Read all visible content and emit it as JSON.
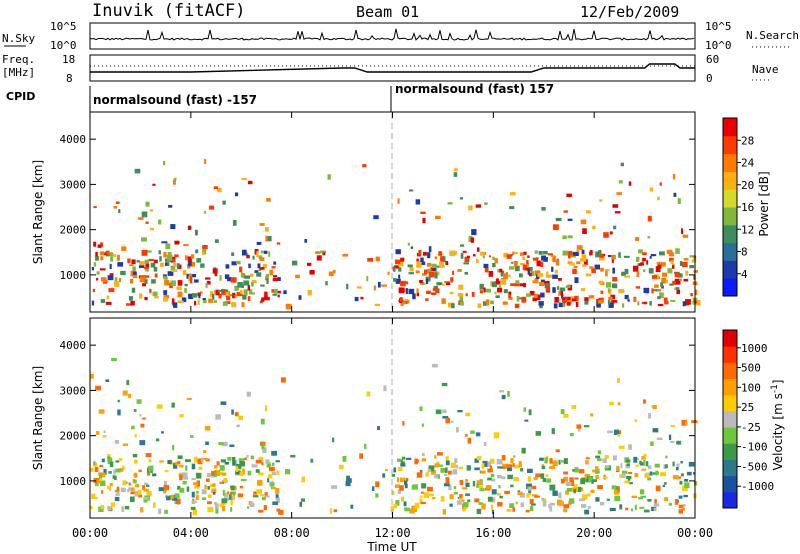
{
  "header": {
    "station": "Inuvik (fitACF)",
    "beam": "Beam 01",
    "date": "12/Feb/2009"
  },
  "top_panels": {
    "nsky_label": "N.Sky",
    "nsky_ticks": [
      "10^5",
      "10^0"
    ],
    "nsearch_label": "N.Search",
    "nsearch_ticks": [
      "10^5",
      "10^0"
    ],
    "freq_label_1": "Freq.",
    "freq_label_2": "[MHz]",
    "freq_ticks": [
      "18",
      "8"
    ],
    "nave_label": "Nave",
    "nave_ticks": [
      "60",
      "0"
    ],
    "cpid_label": "CPID",
    "cpid_1": "normalsound (fast) -157",
    "cpid_2": "normalsound (fast) 157"
  },
  "chart_data": [
    {
      "type": "heatmap",
      "title": "",
      "ylabel": "Slant Range [km]",
      "xlabel": "Time UT",
      "x_ticks": [
        "00:00",
        "04:00",
        "08:00",
        "12:00",
        "16:00",
        "20:00",
        "00:00"
      ],
      "x_range_hours": [
        0,
        24
      ],
      "y_ticks": [
        1000,
        2000,
        3000,
        4000
      ],
      "ylim": [
        180,
        4600
      ],
      "colorbar": {
        "label": "Power [dB]",
        "ticks": [
          "4",
          "8",
          "12",
          "16",
          "20",
          "24",
          "28"
        ],
        "colors": [
          "#0a1cff",
          "#1c3aa8",
          "#2a6e9a",
          "#3d8e5a",
          "#7fb83a",
          "#d8d82a",
          "#ffb010",
          "#ff7a00",
          "#ff3a00",
          "#e80000"
        ]
      }
    },
    {
      "type": "heatmap",
      "title": "",
      "ylabel": "Slant Range [km]",
      "xlabel": "Time UT",
      "x_ticks": [
        "00:00",
        "04:00",
        "08:00",
        "12:00",
        "16:00",
        "20:00",
        "00:00"
      ],
      "x_range_hours": [
        0,
        24
      ],
      "y_ticks": [
        1000,
        2000,
        3000,
        4000
      ],
      "ylim": [
        180,
        4600
      ],
      "colorbar": {
        "label": "Velocity [m s^-1]",
        "ticks": [
          "1000",
          "500",
          "100",
          "25",
          "-25",
          "-100",
          "-500",
          "-1000"
        ],
        "colors": [
          "#1a28e6",
          "#1a50a0",
          "#2a7a8a",
          "#3a9a4a",
          "#6ac83a",
          "#bbbbbb",
          "#ffcc00",
          "#ffa000",
          "#ff6a00",
          "#ff3000",
          "#e00000"
        ]
      }
    }
  ],
  "colors": {
    "reference_line": "#aaaaaa",
    "axis": "#000000"
  }
}
